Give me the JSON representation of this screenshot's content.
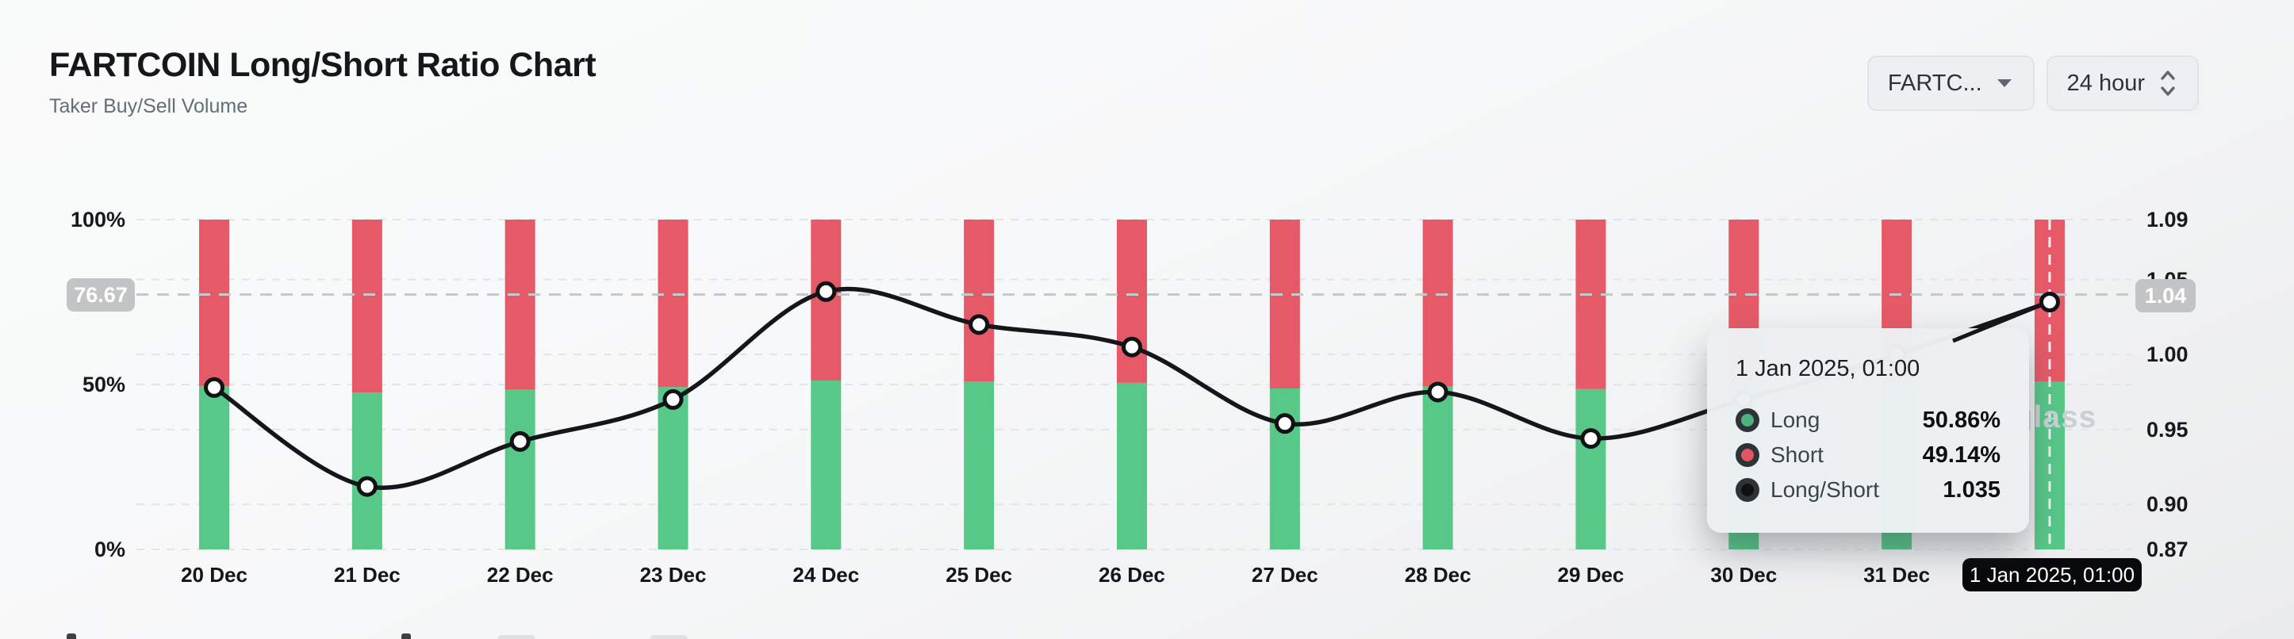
{
  "header": {
    "title": "FARTCOIN Long/Short Ratio Chart",
    "subtitle": "Taker Buy/Sell Volume"
  },
  "controls": {
    "pair": {
      "label": "FARTC..."
    },
    "interval": {
      "label": "24 hour"
    }
  },
  "chart_data": {
    "type": "stacked-bar-line",
    "categories": [
      "20 Dec",
      "21 Dec",
      "22 Dec",
      "23 Dec",
      "24 Dec",
      "25 Dec",
      "26 Dec",
      "27 Dec",
      "28 Dec",
      "29 Dec",
      "30 Dec",
      "31 Dec",
      "1 Jan"
    ],
    "series": [
      {
        "name": "Long",
        "type": "bar",
        "unit": "%",
        "color": "#57c888",
        "values": [
          49.45,
          47.6,
          48.4,
          49.2,
          51.2,
          50.8,
          50.5,
          48.8,
          49.35,
          48.6,
          49.2,
          50.0,
          50.86
        ]
      },
      {
        "name": "Short",
        "type": "bar",
        "unit": "%",
        "color": "#e65a68",
        "values": [
          50.55,
          52.4,
          51.6,
          50.8,
          48.8,
          49.2,
          49.5,
          51.2,
          50.65,
          51.4,
          50.8,
          50.0,
          49.14
        ]
      },
      {
        "name": "Long/Short",
        "type": "line",
        "color": "#141619",
        "values": [
          0.978,
          0.912,
          0.942,
          0.97,
          1.042,
          1.02,
          1.005,
          0.954,
          0.975,
          0.944,
          0.97,
          1.0,
          1.035
        ]
      }
    ],
    "left_axis": {
      "unit": "%",
      "range": [
        0,
        100
      ],
      "ticks": [
        {
          "label": "100%",
          "value": 100
        },
        {
          "label": "50%",
          "value": 50
        },
        {
          "label": "0%",
          "value": 0
        }
      ]
    },
    "right_axis": {
      "range": [
        0.87,
        1.09
      ],
      "ticks": [
        {
          "label": "1.09",
          "value": 1.09
        },
        {
          "label": "1.05",
          "value": 1.05
        },
        {
          "label": "1.00",
          "value": 1.0
        },
        {
          "label": "0.95",
          "value": 0.95
        },
        {
          "label": "0.90",
          "value": 0.9
        },
        {
          "label": "0.87",
          "value": 0.87
        }
      ]
    },
    "grid": "dashed",
    "legend_position": "none"
  },
  "crosshair": {
    "left_badge": "76.67",
    "right_badge": "1.04",
    "x_badge": "1 Jan 2025, 01:00",
    "ratio": 1.04,
    "x_index": 12
  },
  "tooltip": {
    "title": "1 Jan 2025, 01:00",
    "rows": [
      {
        "label": "Long",
        "value": "50.86%",
        "color": "#4db378"
      },
      {
        "label": "Short",
        "value": "49.14%",
        "color": "#e25563"
      },
      {
        "label": "Long/Short",
        "value": "1.035",
        "color": "#111111"
      }
    ]
  },
  "watermark": "Coinglass"
}
